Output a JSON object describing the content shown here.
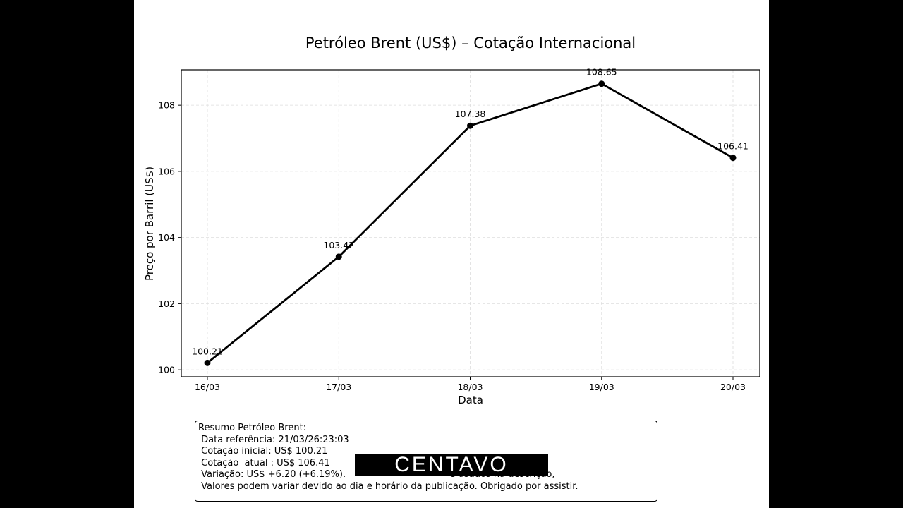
{
  "chart_data": {
    "type": "line",
    "title": "Petróleo Brent (US$) – Cotação Internacional",
    "xlabel": "Data",
    "ylabel": "Preço por Barril (US$)",
    "categories": [
      "16/03",
      "17/03",
      "18/03",
      "19/03",
      "20/03"
    ],
    "series": [
      {
        "name": "Brent",
        "values": [
          100.21,
          103.42,
          107.38,
          108.65,
          106.41
        ],
        "color": "#000000"
      }
    ],
    "data_labels": [
      "100.21",
      "103.42",
      "107.38",
      "108.65",
      "106.41"
    ],
    "yticks": [
      100,
      102,
      104,
      106,
      108
    ],
    "ylim": [
      99.79,
      109.07
    ],
    "grid": true,
    "legend": "none"
  },
  "summary": {
    "lines": [
      "Resumo Petróleo Brent:",
      " Data referência: 21/03/26:23:03",
      " Cotação inicial: US$ 100.21",
      " Cotação  atual : US$ 106.41",
      " Variação: US$ +6.20 (+6.19%).                                    s usados na descrição,",
      " Valores podem variar devido ao dia e horário da publicação. Obrigado por assistir."
    ]
  },
  "watermark": {
    "text": "CENTAVO"
  }
}
